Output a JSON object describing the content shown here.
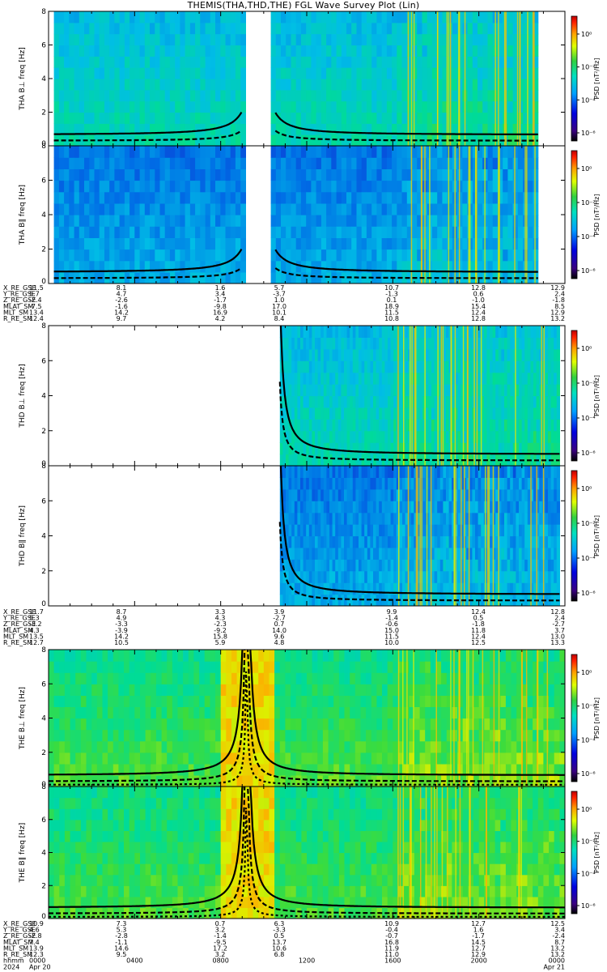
{
  "title": "THEMIS(THA,THD,THE) FGL Wave Survey Plot (Lin)",
  "colorbar": {
    "label": "PSD [nT²/Hz]",
    "ticks": [
      "10⁰",
      "10⁻²",
      "10⁻⁴",
      "10⁻⁶"
    ]
  },
  "chart_data": [
    {
      "type": "heatmap",
      "title": "",
      "ylabel": "THA B⊥ freq [Hz]",
      "ylim": [
        0,
        8
      ],
      "yticks": [
        "0",
        "2",
        "4",
        "6",
        "8"
      ],
      "gaps": [
        [
          "0900",
          "1030"
        ]
      ],
      "data_range": [
        "0015",
        "2245"
      ],
      "probe": "THA",
      "component": "perp"
    },
    {
      "type": "heatmap",
      "title": "",
      "ylabel": "THA B∥ freq [Hz]",
      "ylim": [
        0,
        8
      ],
      "yticks": [
        "0",
        "2",
        "4",
        "6",
        "8"
      ],
      "gaps": [
        [
          "0900",
          "1030"
        ]
      ],
      "data_range": [
        "0015",
        "2245"
      ],
      "probe": "THA",
      "component": "par"
    },
    {
      "type": "heatmap",
      "title": "",
      "ylabel": "THD B⊥ freq [Hz]",
      "ylim": [
        0,
        8
      ],
      "yticks": [
        "0",
        "2",
        "4",
        "6",
        "8"
      ],
      "data_range": [
        "1045",
        "2345"
      ],
      "probe": "THD",
      "component": "perp"
    },
    {
      "type": "heatmap",
      "title": "",
      "ylabel": "THD B∥ freq [Hz]",
      "ylim": [
        0,
        8
      ],
      "yticks": [
        "0",
        "2",
        "4",
        "6",
        "8"
      ],
      "data_range": [
        "1045",
        "2345"
      ],
      "probe": "THD",
      "component": "par"
    },
    {
      "type": "heatmap",
      "title": "",
      "ylabel": "THE B⊥ freq [Hz]",
      "ylim": [
        0,
        8
      ],
      "yticks": [
        "0",
        "2",
        "4",
        "6",
        "8"
      ],
      "data_range": [
        "0000",
        "2400"
      ],
      "probe": "THE",
      "component": "perp"
    },
    {
      "type": "heatmap",
      "title": "",
      "ylabel": "THE B∥ freq [Hz]",
      "ylim": [
        0,
        8
      ],
      "yticks": [
        "0",
        "2",
        "4",
        "6",
        "8"
      ],
      "data_range": [
        "0000",
        "2400"
      ],
      "probe": "THE",
      "component": "par"
    }
  ],
  "ephemeris": [
    {
      "rows": [
        {
          "name": "X_RE_GSE",
          "values": [
            "11.5",
            "8.1",
            "1.6",
            "5.7",
            "10.7",
            "12.8",
            "12.9"
          ]
        },
        {
          "name": "Y_RE_GSE",
          "values": [
            "5.7",
            "4.7",
            "3.4",
            "-3.7",
            "-1.3",
            "0.6",
            "2.4"
          ]
        },
        {
          "name": "Z_RE_GSE",
          "values": [
            "-2.4",
            "-2.6",
            "-1.7",
            "1.0",
            "0.1",
            "-1.0",
            "-1.8"
          ]
        },
        {
          "name": "MLAT_SM",
          "values": [
            "-7.5",
            "-1.6",
            "-9.8",
            "17.0",
            "18.9",
            "15.4",
            "8.5"
          ]
        },
        {
          "name": "MLT_SM",
          "values": [
            "13.4",
            "14.2",
            "16.9",
            "10.1",
            "11.5",
            "12.4",
            "12.9"
          ]
        },
        {
          "name": "R_RE_SM",
          "values": [
            "12.4",
            "9.7",
            "4.2",
            "8.4",
            "10.8",
            "12.8",
            "13.2"
          ]
        }
      ]
    },
    {
      "rows": [
        {
          "name": "X_RE_GSE",
          "values": [
            "11.7",
            "8.7",
            "3.3",
            "3.9",
            "9.9",
            "12.4",
            "12.8"
          ]
        },
        {
          "name": "Y_RE_GSE",
          "values": [
            "5.3",
            "4.9",
            "4.3",
            "-2.7",
            "-1.4",
            "0.5",
            "2.4"
          ]
        },
        {
          "name": "Z_RE_GSE",
          "values": [
            "-3.2",
            "-3.3",
            "-2.3",
            "0.7",
            "-0.6",
            "-1.8",
            "-2.7"
          ]
        },
        {
          "name": "MLAT_SM",
          "values": [
            "4.3",
            "-3.9",
            "-9.2",
            "14.0",
            "15.0",
            "11.8",
            "3.7"
          ]
        },
        {
          "name": "MLT_SM",
          "values": [
            "13.5",
            "14.2",
            "15.8",
            "9.6",
            "11.5",
            "12.4",
            "13.0"
          ]
        },
        {
          "name": "R_RE_SM",
          "values": [
            "12.7",
            "10.5",
            "5.9",
            "4.8",
            "10.0",
            "12.5",
            "13.3"
          ]
        }
      ]
    },
    {
      "rows": [
        {
          "name": "X_RE_GSE",
          "values": [
            "10.9",
            "7.3",
            "0.7",
            "6.3",
            "10.9",
            "12.7",
            "12.5"
          ]
        },
        {
          "name": "Y_RE_GSE",
          "values": [
            "4.6",
            "5.3",
            "3.2",
            "-3.3",
            "-0.4",
            "1.6",
            "3.4"
          ]
        },
        {
          "name": "Z_RE_GSE",
          "values": [
            "-2.8",
            "-2.8",
            "-1.4",
            "0.5",
            "-0.7",
            "-1.7",
            "-2.4"
          ]
        },
        {
          "name": "MLAT_SM",
          "values": [
            "7.4",
            "-1.1",
            "-9.5",
            "13.7",
            "16.8",
            "14.5",
            "8.7"
          ]
        },
        {
          "name": "MLT_SM",
          "values": [
            "13.9",
            "14.6",
            "17.2",
            "10.6",
            "11.9",
            "12.7",
            "13.2"
          ]
        },
        {
          "name": "R_RE_SM",
          "values": [
            "12.3",
            "9.5",
            "3.2",
            "6.8",
            "11.0",
            "12.9",
            "13.2"
          ]
        }
      ]
    }
  ],
  "time_axis": {
    "row_labels": [
      "hhmm",
      "2024"
    ],
    "times": [
      "0000",
      "0400",
      "0800",
      "1200",
      "1600",
      "2000",
      "0000"
    ],
    "dates": [
      "Apr 20",
      "Apr 21"
    ]
  }
}
